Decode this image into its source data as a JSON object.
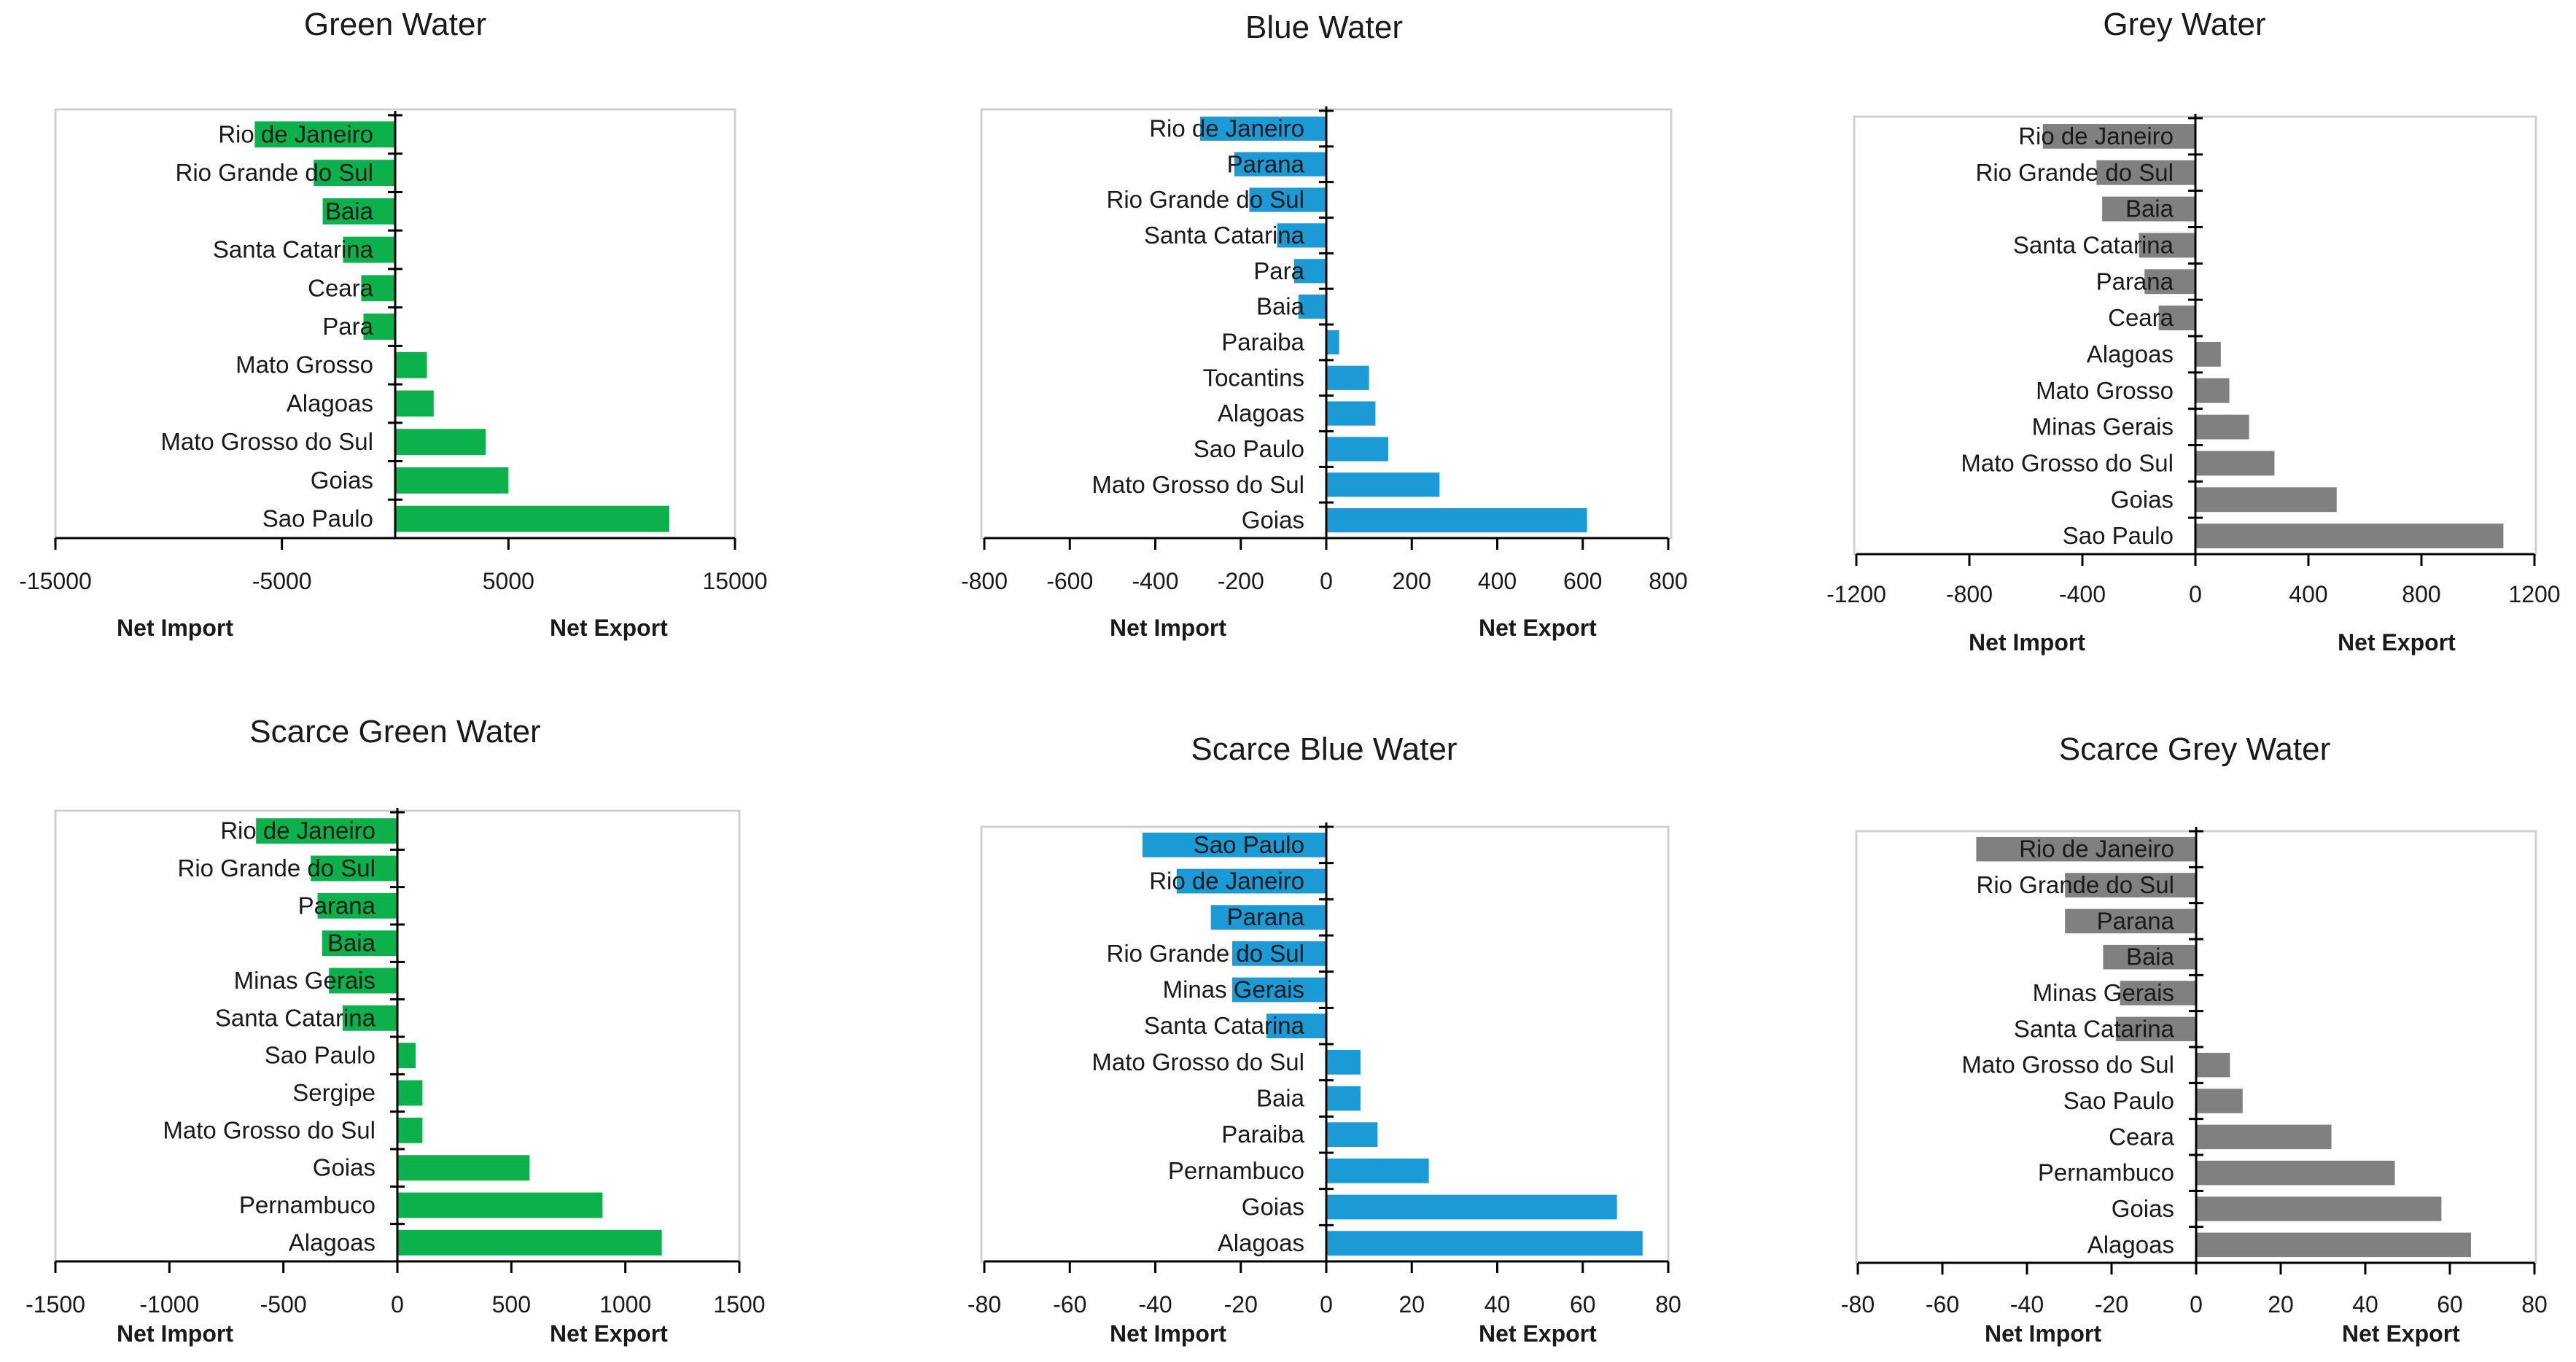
{
  "chart_data": [
    {
      "type": "bar",
      "orientation": "horizontal",
      "title": "Green Water",
      "color": "#0db14b",
      "xlim": [
        -15000,
        15000
      ],
      "xticks": [
        -15000,
        -5000,
        5000,
        15000
      ],
      "left_label": "Net Import",
      "right_label": "Net Export",
      "categories": [
        "Rio de Janeiro",
        "Rio Grande do Sul",
        "Baia",
        "Santa Catarina",
        "Ceara",
        "Para",
        "Mato Grosso",
        "Alagoas",
        "Mato Grosso do Sul",
        "Goias",
        "Sao Paulo"
      ],
      "values": [
        -6200,
        -3600,
        -3200,
        -2300,
        -1500,
        -1400,
        1400,
        1700,
        4000,
        5000,
        12100
      ]
    },
    {
      "type": "bar",
      "orientation": "horizontal",
      "title": "Blue Water",
      "color": "#1b9ad6",
      "xlim": [
        -800,
        800
      ],
      "xticks": [
        -800,
        -600,
        -400,
        -200,
        0,
        200,
        400,
        600,
        800
      ],
      "left_label": "Net Import",
      "right_label": "Net Export",
      "categories": [
        "Rio de Janeiro",
        "Parana",
        "Rio Grande do Sul",
        "Santa Catarina",
        "Para",
        "Baia",
        "Paraiba",
        "Tocantins",
        "Alagoas",
        "Sao Paulo",
        "Mato Grosso do Sul",
        "Goias"
      ],
      "values": [
        -295,
        -215,
        -180,
        -115,
        -75,
        -65,
        30,
        100,
        115,
        145,
        265,
        610
      ]
    },
    {
      "type": "bar",
      "orientation": "horizontal",
      "title": "Grey Water",
      "color": "#808080",
      "xlim": [
        -1200,
        1200
      ],
      "xticks": [
        -1200,
        -800,
        -400,
        0,
        400,
        800,
        1200
      ],
      "left_label": "Net Import",
      "right_label": "Net Export",
      "categories": [
        "Rio de Janeiro",
        "Rio Grande do Sul",
        "Baia",
        "Santa Catarina",
        "Parana",
        "Ceara",
        "Alagoas",
        "Mato Grosso",
        "Minas Gerais",
        "Mato Grosso do Sul",
        "Goias",
        "Sao Paulo"
      ],
      "values": [
        -540,
        -350,
        -330,
        -200,
        -180,
        -130,
        90,
        120,
        190,
        280,
        500,
        1090
      ]
    },
    {
      "type": "bar",
      "orientation": "horizontal",
      "title": "Scarce Green Water",
      "color": "#0db14b",
      "xlim": [
        -1500,
        1500
      ],
      "xticks": [
        -1500,
        -1000,
        -500,
        0,
        500,
        1000,
        1500
      ],
      "left_label": "Net Import",
      "right_label": "Net Export",
      "categories": [
        "Rio de Janeiro",
        "Rio Grande do Sul",
        "Parana",
        "Baia",
        "Minas Gerais",
        "Santa Catarina",
        "Sao Paulo",
        "Sergipe",
        "Mato Grosso do Sul",
        "Goias",
        "Pernambuco",
        "Alagoas"
      ],
      "values": [
        -620,
        -380,
        -350,
        -330,
        -300,
        -240,
        80,
        110,
        110,
        580,
        900,
        1160
      ]
    },
    {
      "type": "bar",
      "orientation": "horizontal",
      "title": "Scarce Blue Water",
      "color": "#1b9ad6",
      "xlim": [
        -80,
        80
      ],
      "xticks": [
        -80,
        -60,
        -40,
        -20,
        0,
        20,
        40,
        60,
        80
      ],
      "left_label": "Net Import",
      "right_label": "Net Export",
      "categories": [
        "Sao Paulo",
        "Rio de Janeiro",
        "Parana",
        "Rio Grande do Sul",
        "Minas Gerais",
        "Santa Catarina",
        "Mato Grosso do Sul",
        "Baia",
        "Paraiba",
        "Pernambuco",
        "Goias",
        "Alagoas"
      ],
      "values": [
        -43,
        -35,
        -27,
        -22,
        -22,
        -14,
        8,
        8,
        12,
        24,
        68,
        74
      ]
    },
    {
      "type": "bar",
      "orientation": "horizontal",
      "title": "Scarce Grey Water",
      "color": "#808080",
      "xlim": [
        -80,
        80
      ],
      "xticks": [
        -80,
        -60,
        -40,
        -20,
        0,
        20,
        40,
        60,
        80
      ],
      "left_label": "Net Import",
      "right_label": "Net Export",
      "categories": [
        "Rio de Janeiro",
        "Rio Grande do Sul",
        "Parana",
        "Baia",
        "Minas Gerais",
        "Santa Catarina",
        "Mato Grosso do Sul",
        "Sao Paulo",
        "Ceara",
        "Pernambuco",
        "Goias",
        "Alagoas"
      ],
      "values": [
        -52,
        -31,
        -31,
        -22,
        -18,
        -19,
        8,
        11,
        32,
        47,
        58,
        65
      ]
    }
  ]
}
